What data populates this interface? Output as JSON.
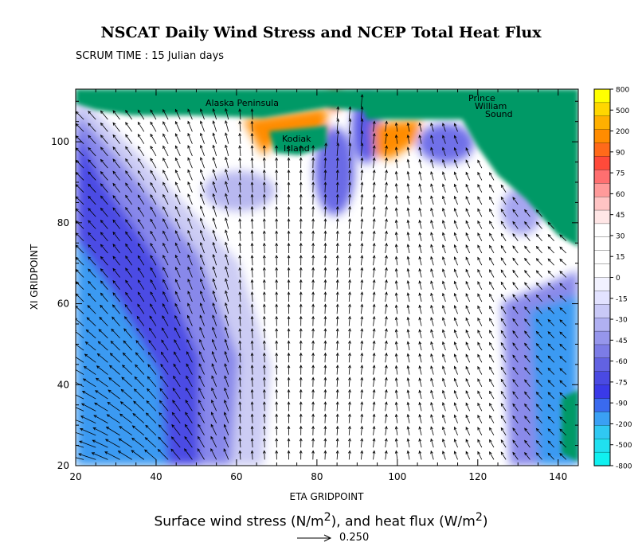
{
  "chart_data": {
    "type": "heatmap",
    "title": "NSCAT Daily Wind Stress and NCEP Total Heat Flux",
    "subtitle": "SCRUM TIME : 15 Julian days",
    "xlabel": "ETA GRIDPOINT",
    "ylabel": "XI GRIDPOINT",
    "xlim": [
      20,
      145
    ],
    "ylim": [
      20,
      113
    ],
    "xticks": [
      20,
      40,
      60,
      80,
      100,
      120,
      140
    ],
    "yticks": [
      20,
      40,
      60,
      80,
      100
    ],
    "caption_main": "Surface wind stress (N/m",
    "caption_mid": "), and heat flux (W/m",
    "caption_end": ")",
    "caption_sup": "2",
    "reference_vector_label": "0.250",
    "place_labels": [
      "Alaska Peninsula",
      "Kodiak",
      "Island",
      "Prince",
      "William",
      "Sound"
    ],
    "colorbar_levels": [
      "800",
      "500",
      "200",
      "90",
      "75",
      "60",
      "45",
      "30",
      "15",
      "0",
      "-15",
      "-30",
      "-45",
      "-60",
      "-75",
      "-90",
      "-200",
      "-500",
      "-800"
    ],
    "colorbar_colors": [
      "#ffff00",
      "#ffd700",
      "#ffb000",
      "#ff8c00",
      "#ff6a1a",
      "#ff4a3a",
      "#ff6f70",
      "#ff9a9a",
      "#ffc4c4",
      "#ffe6e6",
      "#ffffff",
      "#ffffff",
      "#ffffff",
      "#ffffff",
      "#f2f2ff",
      "#e2e2ff",
      "#c9c9f7",
      "#b0b0f2",
      "#9696ec",
      "#7c7ce6",
      "#6262e2",
      "#4a4ae2",
      "#3a3ae8",
      "#3a6aee",
      "#3aa0f4",
      "#30c8f2",
      "#20e0f0",
      "#10f0f0"
    ],
    "land_color": "#009966",
    "wind_stress_field": "vectors pointing generally toward north to north-northwest over most of the domain; strong westward vectors in lower-left (ETA 20-45, XI 20-45)",
    "heat_flux_field": "negative (blue, -30 to -200 W/m2) along western band ETA 20-50 and eastern coast ETA 130-143; positive (orange/red, 45-200 W/m2) near Kodiak and Alaska Peninsula at ETA 60-72 and 93-108, XI 98-108; near zero elsewhere"
  }
}
